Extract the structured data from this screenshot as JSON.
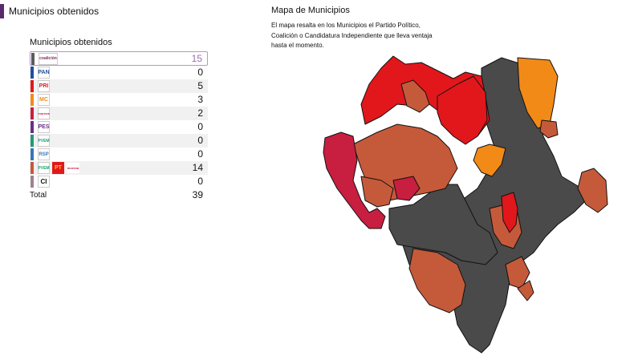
{
  "header": {
    "title": "Municipios obtenidos"
  },
  "table": {
    "title": "Municipios obtenidos",
    "rows": [
      {
        "color": "#5b5b5b",
        "logos": [
          "coalición"
        ],
        "count": "15"
      },
      {
        "color": "#1f4e9c",
        "logos": [
          "PAN"
        ],
        "count": "0"
      },
      {
        "color": "#e2171c",
        "logos": [
          "PRI"
        ],
        "count": "5"
      },
      {
        "color": "#f28a17",
        "logos": [
          "MC"
        ],
        "count": "3"
      },
      {
        "color": "#c81e40",
        "logos": [
          "morena"
        ],
        "count": "2"
      },
      {
        "color": "#6a2c8a",
        "logos": [
          "PES"
        ],
        "count": "0"
      },
      {
        "color": "#1e9d73",
        "logos": [
          "PVEM"
        ],
        "count": "0"
      },
      {
        "color": "#3a74b8",
        "logos": [
          "RSP"
        ],
        "count": "0"
      },
      {
        "color": "#c55a3a",
        "logos": [
          "PVEM",
          "PT",
          "morena"
        ],
        "count": "14"
      },
      {
        "color": "#a08090",
        "logos": [
          "CI"
        ],
        "count": "0"
      }
    ],
    "total_label": "Total",
    "total_value": "39"
  },
  "map": {
    "title": "Mapa de Municipios",
    "description": "El mapa resalta en los Municipios el Partido Político, Coalición o Candidatura Independiente que lleva ventaja hasta el momento.",
    "colors": {
      "gray": "#4a4a4a",
      "red": "#e2171c",
      "orange": "#f28a17",
      "brown": "#c55a3a",
      "crimson": "#c81e40"
    }
  }
}
